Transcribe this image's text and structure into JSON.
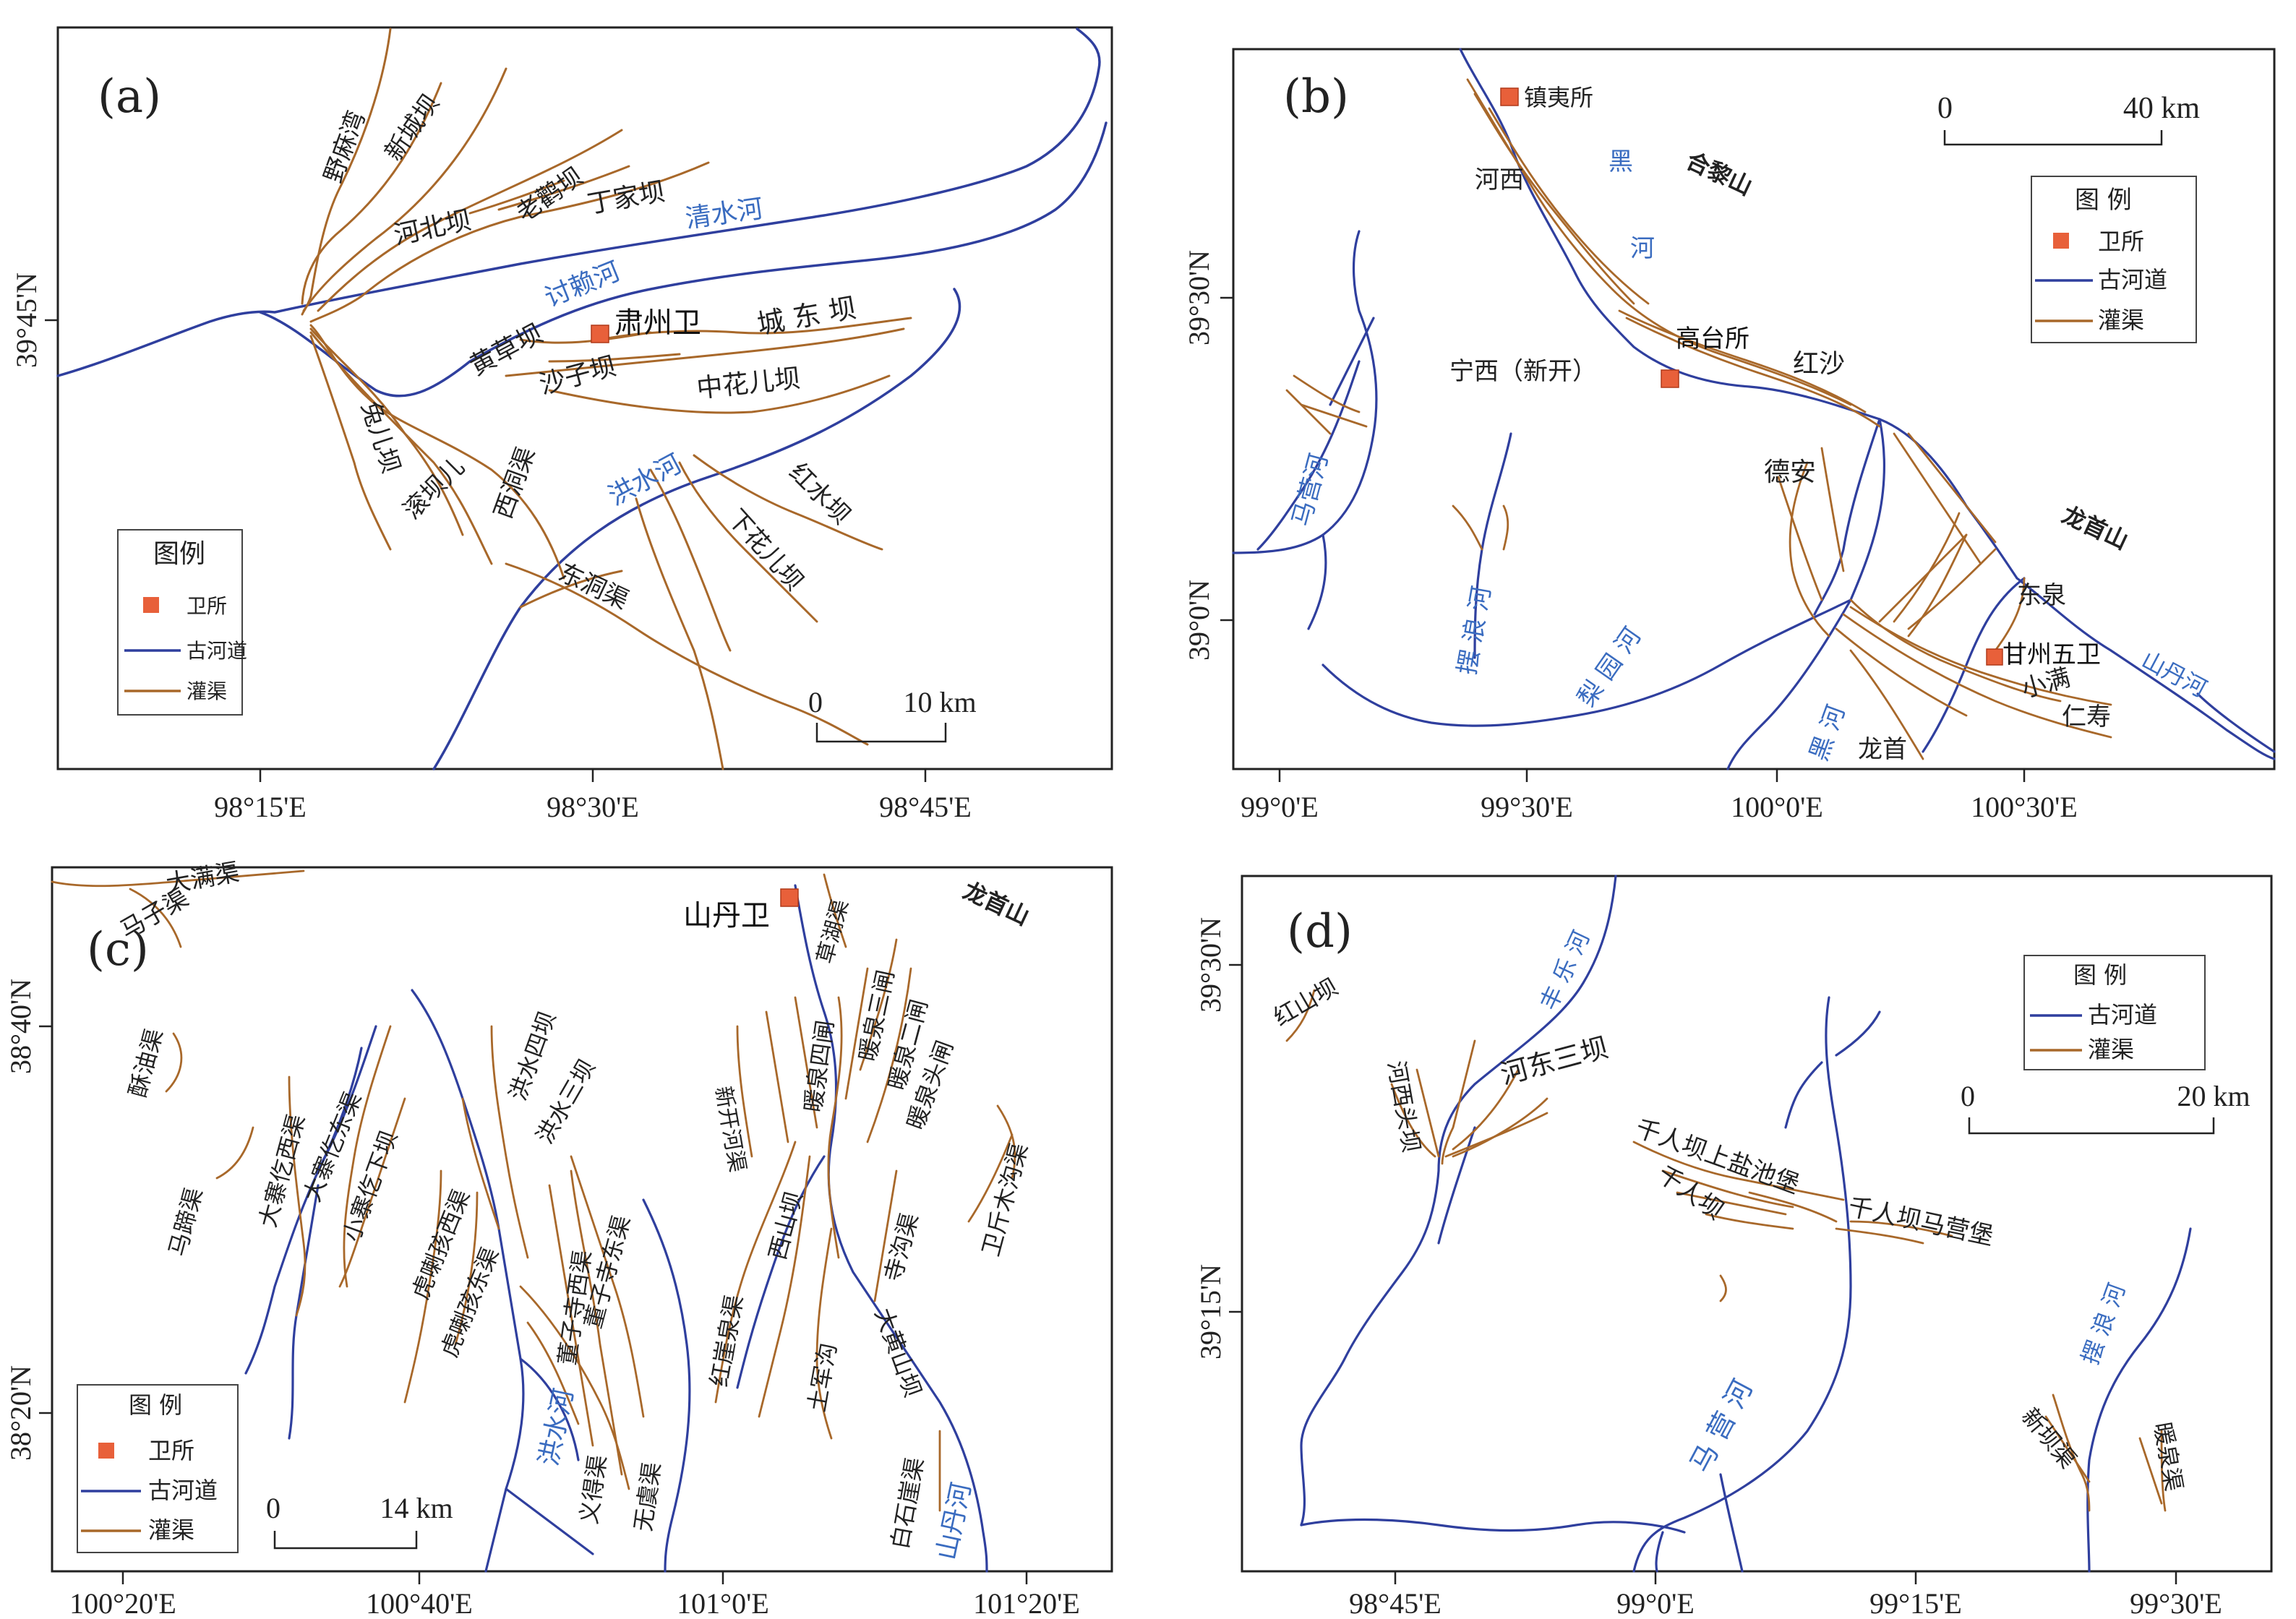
{
  "colors": {
    "river": "#2f3f9e",
    "canal": "#a8682a",
    "station": "#e8603a",
    "frame": "#222222",
    "river_label": "#3a6cc0"
  },
  "panels": {
    "a": {
      "tag": "(a)",
      "legend": {
        "title": "图例",
        "station": "卫所",
        "river": "古河道",
        "canal": "灌渠"
      },
      "scale": {
        "zero": "0",
        "max": "10 km"
      },
      "lon_ticks": [
        "98°15'E",
        "98°30'E",
        "98°45'E"
      ],
      "lat_ticks": [
        "39°45'N"
      ],
      "station": "肃州卫",
      "rivers": [
        "清水河",
        "讨赖河",
        "洪水河"
      ],
      "canals": [
        "野麻湾",
        "新城坝",
        "河北坝",
        "老鹳坝",
        "丁家坝",
        "黄草坝",
        "城 东 坝",
        "沙子坝",
        "中花儿坝",
        "兔儿坝",
        "滚坝儿",
        "西洞渠",
        "红水坝",
        "下花儿坝",
        "东洞渠"
      ]
    },
    "b": {
      "tag": "(b)",
      "legend": {
        "title": "图 例",
        "station": "卫所",
        "river": "古河道",
        "canal": "灌渠"
      },
      "scale": {
        "zero": "0",
        "max": "40 km"
      },
      "lon_ticks": [
        "99°0'E",
        "99°30'E",
        "100°0'E",
        "100°30'E"
      ],
      "lat_ticks": [
        "39°30'N",
        "39°0'N"
      ],
      "stations": [
        "镇夷所",
        "高台所",
        "甘州五卫"
      ],
      "mountains": [
        "合黎山",
        "龙首山"
      ],
      "rivers": [
        "黑",
        "河",
        "马营河",
        "摆 浪 河",
        "梨 园 河",
        "黑 河",
        "山丹河"
      ],
      "places": [
        "河西",
        "宁西（新开）",
        "红沙",
        "德安",
        "东泉",
        "小满",
        "仁寿",
        "龙首"
      ]
    },
    "c": {
      "tag": "(c)",
      "legend": {
        "title": "图 例",
        "station": "卫所",
        "river": "古河道",
        "canal": "灌渠"
      },
      "scale": {
        "zero": "0",
        "max": "14 km"
      },
      "lon_ticks": [
        "100°20'E",
        "100°40'E",
        "101°0'E",
        "101°20'E"
      ],
      "lat_ticks": [
        "38°40'N",
        "38°20'N"
      ],
      "station": "山丹卫",
      "mountain": "龙首山",
      "rivers": [
        "洪水河",
        "山丹河"
      ],
      "canals": [
        "大满渠",
        "马子渠",
        "酥油渠",
        "马蹄渠",
        "大寨仡西渠",
        "大寨仡东渠",
        "小寨仡下坝",
        "洪水四坝",
        "洪水三坝",
        "虎喇孩西渠",
        "虎喇孩东渠",
        "董子寺西渠",
        "董子寺东渠",
        "义得渠",
        "无虞渠",
        "新开河渠",
        "暖泉四闸",
        "暖泉三闸",
        "暖泉二闸",
        "暖泉头闸",
        "草湖渠",
        "西山坝",
        "红崖泉渠",
        "土军沟",
        "寺沟渠",
        "卫斤木沟渠",
        "大黄山坝",
        "白石崖渠"
      ]
    },
    "d": {
      "tag": "(d)",
      "legend": {
        "title": "图 例",
        "river": "古河道",
        "canal": "灌渠"
      },
      "scale": {
        "zero": "0",
        "max": "20 km"
      },
      "lon_ticks": [
        "98°45'E",
        "99°0'E",
        "99°15'E",
        "99°30'E"
      ],
      "lat_ticks": [
        "39°30'N",
        "39°15'N"
      ],
      "rivers": [
        "丰 乐 河",
        "马 营 河",
        "摆 浪 河"
      ],
      "canals": [
        "红山坝",
        "河西头坝",
        "河东三坝",
        "千人坝上盐池堡",
        "千人坝",
        "千人坝马营堡",
        "新坝渠",
        "暖泉渠"
      ]
    }
  }
}
